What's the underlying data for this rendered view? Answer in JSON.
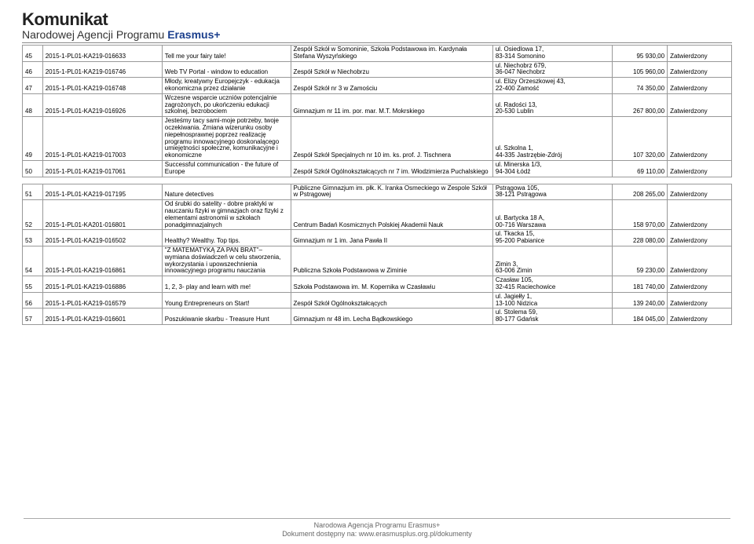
{
  "header": {
    "title": "Komunikat",
    "subtitle_plain": "Narodowej Agencji Programu ",
    "subtitle_accent": "Erasmus+"
  },
  "table": {
    "col_widths": {
      "num": 22,
      "code": 130,
      "title": 140,
      "school": 220,
      "addr": 130,
      "amount": 60,
      "status": 70
    },
    "block1": [
      {
        "n": "45",
        "code": "2015-1-PL01-KA219-016633",
        "title": "Tell me your fairy tale!",
        "school": "Zespół Szkół w Somoninie, Szkoła Podstawowa im. Kardynała Stefana Wyszyńskiego",
        "addr": "ul. Osiedlowa 17,\n83-314 Somonino",
        "amount": "95 930,00",
        "status": "Zatwierdzony"
      },
      {
        "n": "46",
        "code": "2015-1-PL01-KA219-016746",
        "title": "Web TV Portal - window to education",
        "school": "Zespół Szkół w Niechobrzu",
        "addr": "ul. Niechobrz 679,\n36-047 Niechobrz",
        "amount": "105 960,00",
        "status": "Zatwierdzony"
      },
      {
        "n": "47",
        "code": "2015-1-PL01-KA219-016748",
        "title": "Młody, kreatywny Europejczyk - edukacja ekonomiczna przez działanie",
        "school": "Zespół Szkół nr 3 w Zamościu",
        "addr": "ul. Elizy Orzeszkowej 43,\n22-400 Zamość",
        "amount": "74 350,00",
        "status": "Zatwierdzony"
      },
      {
        "n": "48",
        "code": "2015-1-PL01-KA219-016926",
        "title": "Wczesne wsparcie uczniów potencjalnie zagrożonych, po ukończeniu edukacji szkolnej, bezrobociem",
        "school": "Gimnazjum nr 11 im. por. mar. M.T. Mokrskiego",
        "addr": "ul. Radości 13,\n20-530 Lublin",
        "amount": "267 800,00",
        "status": "Zatwierdzony"
      },
      {
        "n": "49",
        "code": "2015-1-PL01-KA219-017003",
        "title": "Jesteśmy tacy sami-moje potrzeby, twoje oczekiwania. Zmiana wizerunku osoby niepełnosprawnej poprzez realizację programu innowacyjnego doskonalącego umiejętności społeczne, komunikacyjne i ekonomiczne",
        "school": "Zespół Szkół Specjalnych nr 10 im. ks. prof. J. Tischnera",
        "addr": "ul. Szkolna 1,\n44-335 Jastrzębie-Zdrój",
        "amount": "107 320,00",
        "status": "Zatwierdzony"
      },
      {
        "n": "50",
        "code": "2015-1-PL01-KA219-017061",
        "title": "Successful communication - the future of Europe",
        "school": "Zespół Szkół Ogólnokształcących nr 7 im. Włodzimierza Puchalskiego",
        "addr": "ul. Minerska 1/3,\n94-304 Łódź",
        "amount": "69 110,00",
        "status": "Zatwierdzony"
      }
    ],
    "block2": [
      {
        "n": "51",
        "code": "2015-1-PL01-KA219-017195",
        "title": "Nature detectives",
        "school": "Publiczne Gimnazjum im. płk. K. Iranka Osmeckiego w Zespole Szkół w Pstrągowej",
        "addr": "Pstrągowa 105,\n38-121 Pstrągowa",
        "amount": "208 265,00",
        "status": "Zatwierdzony"
      },
      {
        "n": "52",
        "code": "2015-1-PL01-KA201-016801",
        "title": "Od śrubki do satelity - dobre praktyki w nauczaniu fizyki w gimnazjach oraz fizyki z elementami astronomii w szkołach ponadgimnazjalnych",
        "school": "Centrum Badań Kosmicznych Polskiej Akademii Nauk",
        "addr": "ul. Bartycka 18 A,\n00-716 Warszawa",
        "amount": "158 970,00",
        "status": "Zatwierdzony"
      },
      {
        "n": "53",
        "code": "2015-1-PL01-KA219-016502",
        "title": "Healthy? Wealthy. Top tips.",
        "school": "Gimnazjum nr 1 im. Jana Pawła II",
        "addr": "ul. Tkacka 15,\n95-200 Pabianice",
        "amount": "228 080,00",
        "status": "Zatwierdzony"
      },
      {
        "n": "54",
        "code": "2015-1-PL01-KA219-016861",
        "title": "\"Z MATEMATYKĄ ZA PAN BRAT\"– wymiana doświadczeń w celu stworzenia, wykorzystania i upowszechnienia innowacyjnego programu nauczania",
        "school": "Publiczna Szkoła Podstawowa w Ziminie",
        "addr": "Zimin 3,\n63-006 Zimin",
        "amount": "59 230,00",
        "status": "Zatwierdzony"
      },
      {
        "n": "55",
        "code": "2015-1-PL01-KA219-016886",
        "title": "1, 2, 3- play and learn with me!",
        "school": "Szkoła Podstawowa im. M. Kopernika w Czasławiu",
        "addr": "Czasław 105,\n32-415 Raciechowice",
        "amount": "181 740,00",
        "status": "Zatwierdzony"
      },
      {
        "n": "56",
        "code": "2015-1-PL01-KA219-016579",
        "title": "Young Entrepreneurs on Start!",
        "school": "Zespół Szkół Ogólnokształcących",
        "addr": "ul. Jagiełły 1,\n13-100 Nidzica",
        "amount": "139 240,00",
        "status": "Zatwierdzony"
      },
      {
        "n": "57",
        "code": "2015-1-PL01-KA219-016601",
        "title": "Poszukiwanie skarbu - Treasure Hunt",
        "school": "Gimnazjum nr 48 im. Lecha Bądkowskiego",
        "addr": "ul. Stolema 59,\n80-177 Gdańsk",
        "amount": "184 045,00",
        "status": "Zatwierdzony"
      }
    ]
  },
  "footer": {
    "line1": "Narodowa Agencja Programu Erasmus+",
    "line2_prefix": "Dokument dostępny na: ",
    "line2_link": "www.erasmusplus.org.pl/dokumenty"
  }
}
